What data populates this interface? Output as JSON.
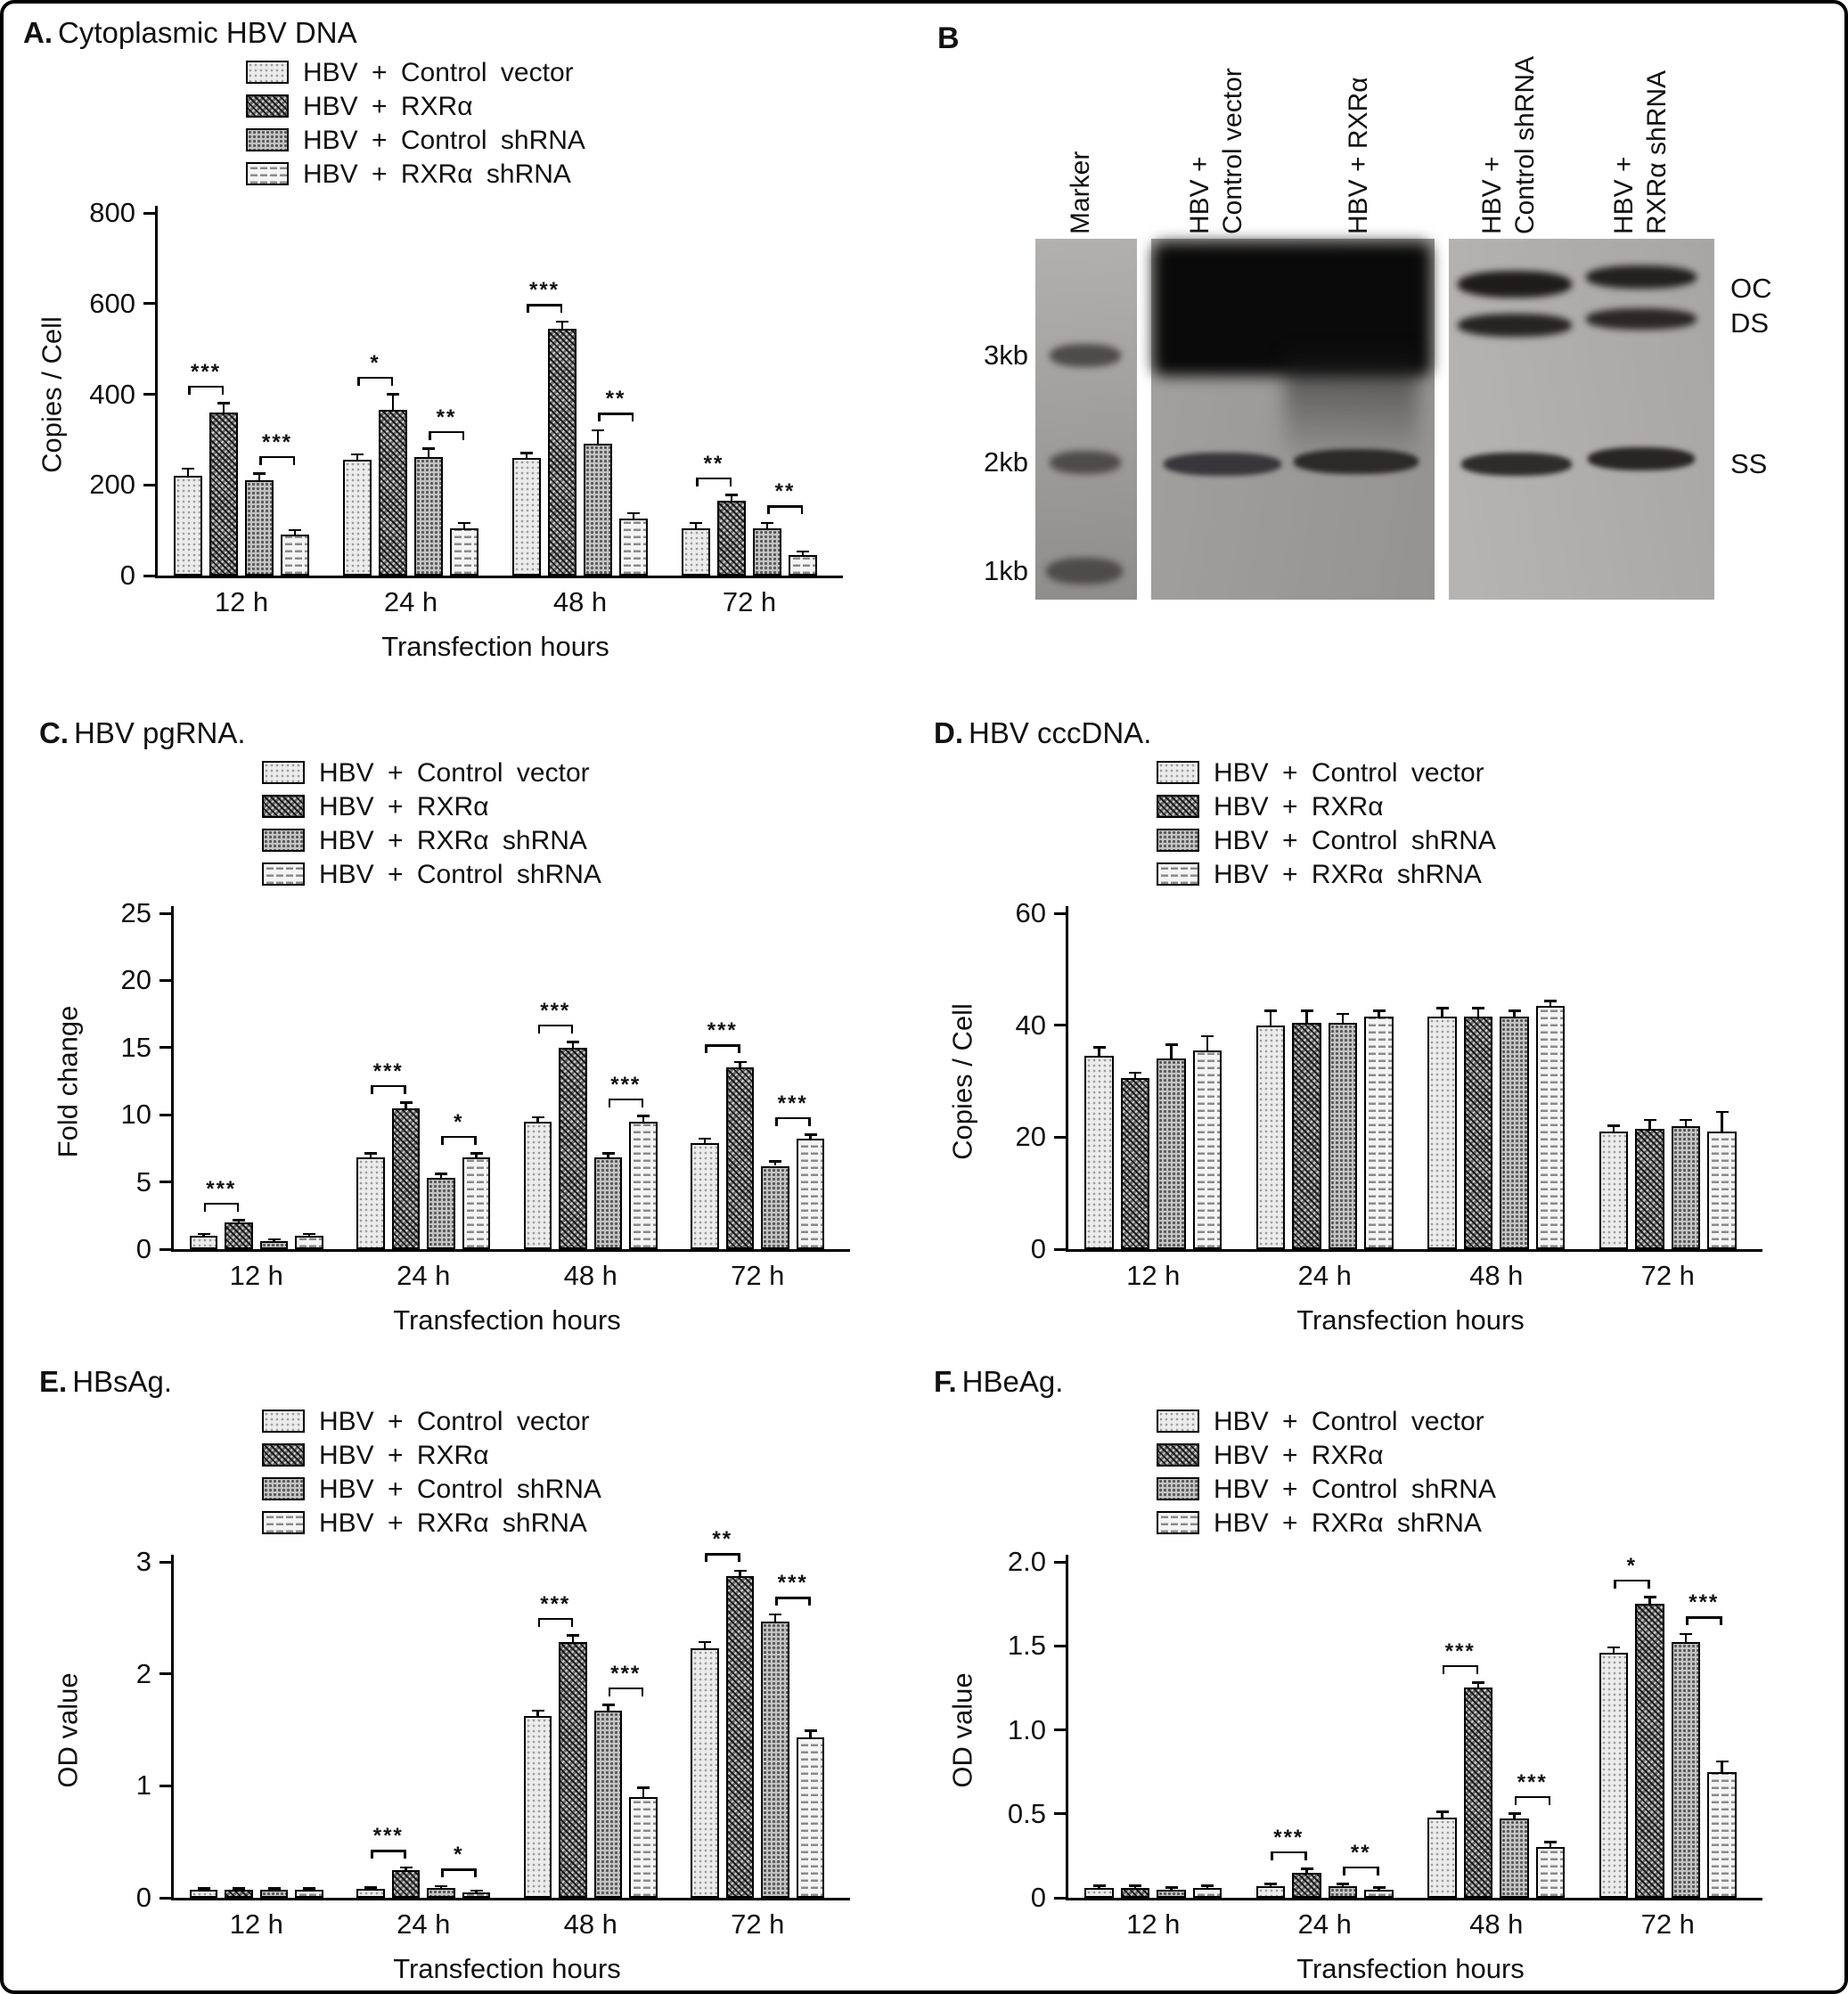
{
  "panels": {
    "A": {
      "label": "A.",
      "title": "Cytoplasmic HBV DNA"
    },
    "B": {
      "label": "B"
    },
    "C": {
      "label": "C.",
      "title": "HBV pgRNA."
    },
    "D": {
      "label": "D.",
      "title": "HBV cccDNA."
    },
    "E": {
      "label": "E.",
      "title": "HBsAg."
    },
    "F": {
      "label": "F.",
      "title": "HBeAg."
    }
  },
  "gel": {
    "lanes": [
      "Marker",
      "HBV +\nControl vector",
      "HBV + RXRα",
      "HBV +\nControl shRNA",
      "HBV +\nRXRα shRNA"
    ],
    "size_markers": [
      "3kb",
      "2kb",
      "1kb"
    ],
    "band_labels": [
      "OC",
      "DS",
      "SS"
    ]
  },
  "chart_data": [
    {
      "panel": "A",
      "type": "bar",
      "title": "Cytoplasmic HBV DNA",
      "xlabel": "Transfection hours",
      "ylabel": "Copies / Cell",
      "ylim": [
        0,
        800
      ],
      "yticks": [
        0,
        200,
        400,
        600,
        800
      ],
      "yticklabels": [
        "0",
        "200",
        "400",
        "600",
        "800"
      ],
      "categories": [
        "12 h",
        "24 h",
        "48 h",
        "72 h"
      ],
      "legend_position": "top-left",
      "grid": false,
      "series": [
        {
          "name": "HBV + Control vector",
          "values": [
            220,
            255,
            260,
            105
          ],
          "errors": [
            15,
            12,
            10,
            10
          ]
        },
        {
          "name": "HBV + RXRα",
          "values": [
            360,
            365,
            545,
            165
          ],
          "errors": [
            20,
            35,
            15,
            12
          ]
        },
        {
          "name": "HBV + Control shRNA",
          "values": [
            210,
            262,
            290,
            105
          ],
          "errors": [
            15,
            18,
            30,
            10
          ]
        },
        {
          "name": "HBV + RXRα shRNA",
          "values": [
            90,
            105,
            125,
            45
          ],
          "errors": [
            10,
            10,
            12,
            8
          ]
        }
      ],
      "significance": [
        {
          "category": 0,
          "pair": [
            0,
            1
          ],
          "label": "***"
        },
        {
          "category": 0,
          "pair": [
            2,
            3
          ],
          "label": "***"
        },
        {
          "category": 1,
          "pair": [
            0,
            1
          ],
          "label": "*"
        },
        {
          "category": 1,
          "pair": [
            2,
            3
          ],
          "label": "**"
        },
        {
          "category": 2,
          "pair": [
            0,
            1
          ],
          "label": "***"
        },
        {
          "category": 2,
          "pair": [
            2,
            3
          ],
          "label": "**"
        },
        {
          "category": 3,
          "pair": [
            0,
            1
          ],
          "label": "**"
        },
        {
          "category": 3,
          "pair": [
            2,
            3
          ],
          "label": "**"
        }
      ]
    },
    {
      "panel": "C",
      "type": "bar",
      "title": "HBV pgRNA.",
      "xlabel": "Transfection hours",
      "ylabel": "Fold change",
      "ylim": [
        0,
        25
      ],
      "yticks": [
        0,
        5,
        10,
        15,
        20,
        25
      ],
      "yticklabels": [
        "0",
        "5",
        "10",
        "15",
        "20",
        "25"
      ],
      "categories": [
        "12 h",
        "24 h",
        "48 h",
        "72 h"
      ],
      "legend_position": "top-left",
      "grid": false,
      "series": [
        {
          "name": "HBV + Control vector",
          "values": [
            1.0,
            6.8,
            9.5,
            7.9
          ],
          "errors": [
            0.12,
            0.3,
            0.3,
            0.3
          ]
        },
        {
          "name": "HBV + RXRα",
          "values": [
            2.0,
            10.5,
            15.0,
            13.5
          ],
          "errors": [
            0.15,
            0.4,
            0.4,
            0.4
          ]
        },
        {
          "name": "HBV + RXRα shRNA",
          "values": [
            0.6,
            5.3,
            6.8,
            6.2
          ],
          "errors": [
            0.1,
            0.3,
            0.3,
            0.3
          ]
        },
        {
          "name": "HBV + Control shRNA",
          "values": [
            1.0,
            6.8,
            9.5,
            8.2
          ],
          "errors": [
            0.1,
            0.3,
            0.4,
            0.3
          ]
        }
      ],
      "significance": [
        {
          "category": 0,
          "pair": [
            0,
            1
          ],
          "label": "***"
        },
        {
          "category": 1,
          "pair": [
            0,
            1
          ],
          "label": "***"
        },
        {
          "category": 1,
          "pair": [
            2,
            3
          ],
          "label": "*"
        },
        {
          "category": 2,
          "pair": [
            0,
            1
          ],
          "label": "***"
        },
        {
          "category": 2,
          "pair": [
            2,
            3
          ],
          "label": "***"
        },
        {
          "category": 3,
          "pair": [
            0,
            1
          ],
          "label": "***"
        },
        {
          "category": 3,
          "pair": [
            2,
            3
          ],
          "label": "***"
        }
      ]
    },
    {
      "panel": "D",
      "type": "bar",
      "title": "HBV cccDNA.",
      "xlabel": "Transfection hours",
      "ylabel": "Copies / Cell",
      "ylim": [
        0,
        60
      ],
      "yticks": [
        0,
        20,
        40,
        60
      ],
      "yticklabels": [
        "0",
        "20",
        "40",
        "60"
      ],
      "categories": [
        "12 h",
        "24 h",
        "48 h",
        "72 h"
      ],
      "legend_position": "top-left",
      "grid": false,
      "series": [
        {
          "name": "HBV + Control vector",
          "values": [
            34.5,
            40.0,
            41.5,
            21.0
          ],
          "errors": [
            1.5,
            2.5,
            1.5,
            1.0
          ]
        },
        {
          "name": "HBV + RXRα",
          "values": [
            30.5,
            40.5,
            41.5,
            21.5
          ],
          "errors": [
            1.0,
            2.0,
            1.5,
            1.5
          ]
        },
        {
          "name": "HBV + Control shRNA",
          "values": [
            34.0,
            40.5,
            41.5,
            22.0
          ],
          "errors": [
            2.5,
            1.5,
            1.0,
            1.0
          ]
        },
        {
          "name": "HBV + RXRα shRNA",
          "values": [
            35.5,
            41.5,
            43.5,
            21.0
          ],
          "errors": [
            2.5,
            1.0,
            0.8,
            3.5
          ]
        }
      ],
      "significance": []
    },
    {
      "panel": "E",
      "type": "bar",
      "title": "HBsAg.",
      "xlabel": "Transfection hours",
      "ylabel": "OD value",
      "ylim": [
        0,
        3
      ],
      "yticks": [
        0,
        1,
        2,
        3
      ],
      "yticklabels": [
        "0",
        "1",
        "2",
        "3"
      ],
      "categories": [
        "12 h",
        "24 h",
        "48 h",
        "72 h"
      ],
      "legend_position": "top-left",
      "grid": false,
      "series": [
        {
          "name": "HBV + Control vector",
          "values": [
            0.07,
            0.08,
            1.62,
            2.23
          ],
          "errors": [
            0.01,
            0.01,
            0.05,
            0.05
          ]
        },
        {
          "name": "HBV + RXRα",
          "values": [
            0.07,
            0.25,
            2.28,
            2.87
          ],
          "errors": [
            0.01,
            0.02,
            0.06,
            0.05
          ]
        },
        {
          "name": "HBV + Control shRNA",
          "values": [
            0.07,
            0.09,
            1.67,
            2.47
          ],
          "errors": [
            0.01,
            0.01,
            0.05,
            0.06
          ]
        },
        {
          "name": "HBV + RXRα shRNA",
          "values": [
            0.07,
            0.05,
            0.9,
            1.43
          ],
          "errors": [
            0.01,
            0.01,
            0.08,
            0.06
          ]
        }
      ],
      "significance": [
        {
          "category": 1,
          "pair": [
            0,
            1
          ],
          "label": "***"
        },
        {
          "category": 1,
          "pair": [
            2,
            3
          ],
          "label": "*"
        },
        {
          "category": 2,
          "pair": [
            0,
            1
          ],
          "label": "***"
        },
        {
          "category": 2,
          "pair": [
            2,
            3
          ],
          "label": "***"
        },
        {
          "category": 3,
          "pair": [
            0,
            1
          ],
          "label": "**"
        },
        {
          "category": 3,
          "pair": [
            2,
            3
          ],
          "label": "***"
        }
      ]
    },
    {
      "panel": "F",
      "type": "bar",
      "title": "HBeAg.",
      "xlabel": "Transfection hours",
      "ylabel": "OD value",
      "ylim": [
        0,
        2
      ],
      "yticks": [
        0,
        0.5,
        1.0,
        1.5,
        2.0
      ],
      "yticklabels": [
        "0",
        "0.5",
        "1.0",
        "1.5",
        "2.0"
      ],
      "categories": [
        "12 h",
        "24 h",
        "48 h",
        "72 h"
      ],
      "legend_position": "top-left",
      "grid": false,
      "series": [
        {
          "name": "HBV + Control vector",
          "values": [
            0.06,
            0.07,
            0.48,
            1.46
          ],
          "errors": [
            0.01,
            0.01,
            0.03,
            0.03
          ]
        },
        {
          "name": "HBV + RXRα",
          "values": [
            0.06,
            0.15,
            1.25,
            1.75
          ],
          "errors": [
            0.01,
            0.02,
            0.03,
            0.04
          ]
        },
        {
          "name": "HBV + Control shRNA",
          "values": [
            0.05,
            0.07,
            0.47,
            1.52
          ],
          "errors": [
            0.01,
            0.01,
            0.03,
            0.05
          ]
        },
        {
          "name": "HBV + RXRα shRNA",
          "values": [
            0.06,
            0.05,
            0.3,
            0.75
          ],
          "errors": [
            0.01,
            0.01,
            0.03,
            0.06
          ]
        }
      ],
      "significance": [
        {
          "category": 1,
          "pair": [
            0,
            1
          ],
          "label": "***"
        },
        {
          "category": 1,
          "pair": [
            2,
            3
          ],
          "label": "**"
        },
        {
          "category": 2,
          "pair": [
            0,
            1
          ],
          "label": "***"
        },
        {
          "category": 2,
          "pair": [
            2,
            3
          ],
          "label": "***"
        },
        {
          "category": 3,
          "pair": [
            0,
            1
          ],
          "label": "*"
        },
        {
          "category": 3,
          "pair": [
            2,
            3
          ],
          "label": "***"
        }
      ]
    }
  ]
}
